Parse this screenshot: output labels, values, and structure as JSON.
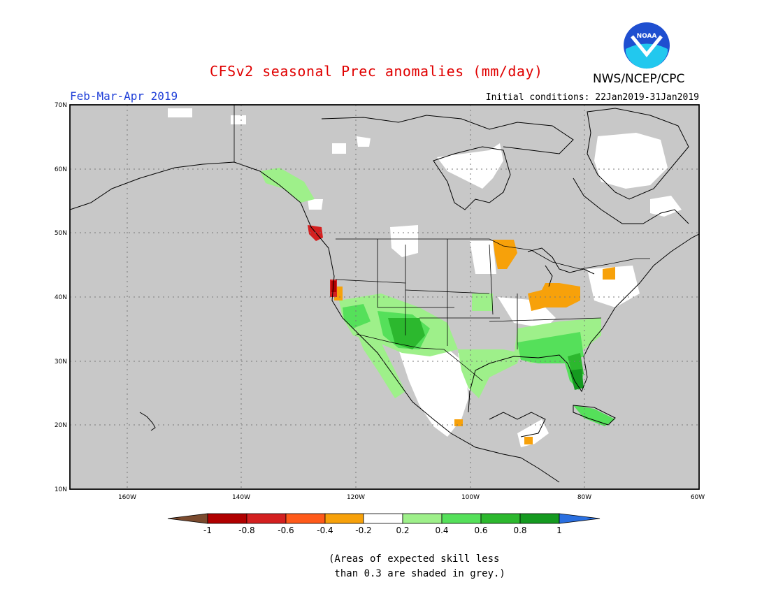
{
  "title": "CFSv2 seasonal Prec anomalies (mm/day)",
  "agency": "NWS/NCEP/CPC",
  "logo_text": "NOAA",
  "period": "Feb-Mar-Apr 2019",
  "initial_conditions": "Initial conditions: 22Jan2019-31Jan2019",
  "lat_labels": [
    "70N",
    "60N",
    "50N",
    "40N",
    "30N",
    "20N",
    "10N"
  ],
  "lon_labels": [
    "160W",
    "140W",
    "120W",
    "100W",
    "80W",
    "60W"
  ],
  "colorbar": {
    "tick_labels": [
      "-1",
      "-0.8",
      "-0.6",
      "-0.4",
      "-0.2",
      "0.2",
      "0.4",
      "0.6",
      "0.8",
      "1"
    ],
    "colors": [
      "#7a4a2e",
      "#b00000",
      "#d42020",
      "#ff5a1a",
      "#f7a10a",
      "#ffffff",
      "#9ef08a",
      "#55e05a",
      "#2cb82e",
      "#159a20",
      "#2a6fe0"
    ]
  },
  "footnote": [
    "(Areas of expected skill less",
    " than 0.3 are shaded in grey.)"
  ]
}
